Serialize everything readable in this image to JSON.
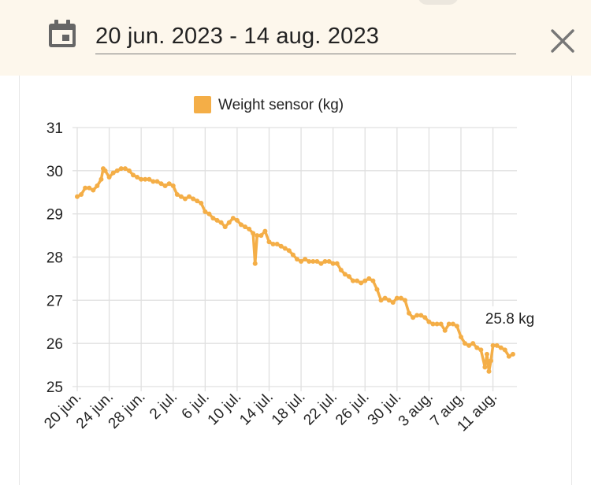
{
  "header": {
    "date_range": "20 jun. 2023 - 14 aug. 2023",
    "calendar_icon": "calendar-icon",
    "close_icon": "close-icon"
  },
  "colors": {
    "series": "#f4ae47",
    "header_bg": "#fdf7ec",
    "grid": "#e0e0e0"
  },
  "chart_data": {
    "type": "line",
    "legend": [
      {
        "name": "Weight sensor (kg)",
        "color": "#f4ae47",
        "position": "top-center"
      }
    ],
    "ylim": [
      25,
      31
    ],
    "yticks": [
      "25",
      "26",
      "27",
      "28",
      "29",
      "30",
      "31"
    ],
    "xlim": [
      "2023-06-20",
      "2023-08-14"
    ],
    "xticks": [
      {
        "label": "20 jun.",
        "date": "2023-06-20"
      },
      {
        "label": "24 jun.",
        "date": "2023-06-24"
      },
      {
        "label": "28 jun.",
        "date": "2023-06-28"
      },
      {
        "label": "2 jul.",
        "date": "2023-07-02"
      },
      {
        "label": "6 jul.",
        "date": "2023-07-06"
      },
      {
        "label": "10 jul.",
        "date": "2023-07-10"
      },
      {
        "label": "14 jul.",
        "date": "2023-07-14"
      },
      {
        "label": "18 jul.",
        "date": "2023-07-18"
      },
      {
        "label": "22 jul.",
        "date": "2023-07-22"
      },
      {
        "label": "26 jul.",
        "date": "2023-07-26"
      },
      {
        "label": "30 jul.",
        "date": "2023-07-30"
      },
      {
        "label": "3 aug.",
        "date": "2023-08-03"
      },
      {
        "label": "7 aug.",
        "date": "2023-08-07"
      },
      {
        "label": "11 aug.",
        "date": "2023-08-11"
      }
    ],
    "grid": true,
    "series": [
      {
        "name": "Weight sensor (kg)",
        "points": [
          [
            "2023-06-20",
            29.4
          ],
          [
            "2023-06-20T12:00",
            29.45
          ],
          [
            "2023-06-21",
            29.6
          ],
          [
            "2023-06-21T12:00",
            29.6
          ],
          [
            "2023-06-22",
            29.55
          ],
          [
            "2023-06-22T12:00",
            29.65
          ],
          [
            "2023-06-23",
            29.8
          ],
          [
            "2023-06-23T06:00",
            30.05
          ],
          [
            "2023-06-23T12:00",
            30.0
          ],
          [
            "2023-06-24",
            29.85
          ],
          [
            "2023-06-24T12:00",
            29.95
          ],
          [
            "2023-06-25",
            30.0
          ],
          [
            "2023-06-25T12:00",
            30.05
          ],
          [
            "2023-06-26",
            30.05
          ],
          [
            "2023-06-26T12:00",
            30.0
          ],
          [
            "2023-06-27",
            29.9
          ],
          [
            "2023-06-27T12:00",
            29.85
          ],
          [
            "2023-06-28",
            29.8
          ],
          [
            "2023-06-28T12:00",
            29.8
          ],
          [
            "2023-06-29",
            29.8
          ],
          [
            "2023-06-29T12:00",
            29.75
          ],
          [
            "2023-06-30",
            29.75
          ],
          [
            "2023-06-30T12:00",
            29.7
          ],
          [
            "2023-07-01",
            29.65
          ],
          [
            "2023-07-01T12:00",
            29.7
          ],
          [
            "2023-07-02",
            29.65
          ],
          [
            "2023-07-02T12:00",
            29.45
          ],
          [
            "2023-07-03",
            29.4
          ],
          [
            "2023-07-03T12:00",
            29.35
          ],
          [
            "2023-07-04",
            29.4
          ],
          [
            "2023-07-04T12:00",
            29.35
          ],
          [
            "2023-07-05",
            29.3
          ],
          [
            "2023-07-05T12:00",
            29.25
          ],
          [
            "2023-07-06",
            29.05
          ],
          [
            "2023-07-06T12:00",
            29.0
          ],
          [
            "2023-07-07",
            28.9
          ],
          [
            "2023-07-07T12:00",
            28.85
          ],
          [
            "2023-07-08",
            28.8
          ],
          [
            "2023-07-08T12:00",
            28.7
          ],
          [
            "2023-07-09",
            28.8
          ],
          [
            "2023-07-09T12:00",
            28.9
          ],
          [
            "2023-07-10",
            28.85
          ],
          [
            "2023-07-10T12:00",
            28.75
          ],
          [
            "2023-07-11",
            28.7
          ],
          [
            "2023-07-11T12:00",
            28.65
          ],
          [
            "2023-07-12",
            28.55
          ],
          [
            "2023-07-12T06:00",
            27.85
          ],
          [
            "2023-07-12T12:00",
            28.5
          ],
          [
            "2023-07-13",
            28.5
          ],
          [
            "2023-07-13T12:00",
            28.6
          ],
          [
            "2023-07-14",
            28.35
          ],
          [
            "2023-07-14T12:00",
            28.3
          ],
          [
            "2023-07-15",
            28.3
          ],
          [
            "2023-07-15T12:00",
            28.25
          ],
          [
            "2023-07-16",
            28.2
          ],
          [
            "2023-07-16T12:00",
            28.15
          ],
          [
            "2023-07-17",
            28.05
          ],
          [
            "2023-07-17T12:00",
            27.95
          ],
          [
            "2023-07-18",
            27.9
          ],
          [
            "2023-07-18T12:00",
            27.95
          ],
          [
            "2023-07-19",
            27.9
          ],
          [
            "2023-07-19T12:00",
            27.9
          ],
          [
            "2023-07-20",
            27.9
          ],
          [
            "2023-07-20T12:00",
            27.85
          ],
          [
            "2023-07-21",
            27.9
          ],
          [
            "2023-07-21T12:00",
            27.9
          ],
          [
            "2023-07-22",
            27.85
          ],
          [
            "2023-07-22T12:00",
            27.85
          ],
          [
            "2023-07-23",
            27.7
          ],
          [
            "2023-07-23T12:00",
            27.6
          ],
          [
            "2023-07-24",
            27.55
          ],
          [
            "2023-07-24T12:00",
            27.45
          ],
          [
            "2023-07-25",
            27.45
          ],
          [
            "2023-07-25T12:00",
            27.4
          ],
          [
            "2023-07-26",
            27.45
          ],
          [
            "2023-07-26T12:00",
            27.5
          ],
          [
            "2023-07-27",
            27.45
          ],
          [
            "2023-07-27T12:00",
            27.25
          ],
          [
            "2023-07-28",
            27.0
          ],
          [
            "2023-07-28T12:00",
            27.05
          ],
          [
            "2023-07-29",
            27.0
          ],
          [
            "2023-07-29T12:00",
            26.95
          ],
          [
            "2023-07-30",
            27.05
          ],
          [
            "2023-07-30T12:00",
            27.05
          ],
          [
            "2023-07-31",
            27.0
          ],
          [
            "2023-07-31T12:00",
            26.7
          ],
          [
            "2023-08-01",
            26.6
          ],
          [
            "2023-08-01T12:00",
            26.65
          ],
          [
            "2023-08-02",
            26.65
          ],
          [
            "2023-08-02T12:00",
            26.6
          ],
          [
            "2023-08-03",
            26.5
          ],
          [
            "2023-08-03T12:00",
            26.45
          ],
          [
            "2023-08-04",
            26.45
          ],
          [
            "2023-08-04T12:00",
            26.45
          ],
          [
            "2023-08-05",
            26.3
          ],
          [
            "2023-08-05T12:00",
            26.45
          ],
          [
            "2023-08-06",
            26.45
          ],
          [
            "2023-08-06T12:00",
            26.4
          ],
          [
            "2023-08-07",
            26.15
          ],
          [
            "2023-08-07T12:00",
            26.0
          ],
          [
            "2023-08-08",
            25.95
          ],
          [
            "2023-08-08T12:00",
            26.0
          ],
          [
            "2023-08-09",
            25.9
          ],
          [
            "2023-08-09T12:00",
            25.85
          ],
          [
            "2023-08-10",
            25.45
          ],
          [
            "2023-08-10T06:00",
            25.75
          ],
          [
            "2023-08-10T12:00",
            25.35
          ],
          [
            "2023-08-10T18:00",
            25.6
          ],
          [
            "2023-08-11",
            25.95
          ],
          [
            "2023-08-11T12:00",
            25.95
          ],
          [
            "2023-08-12",
            25.9
          ],
          [
            "2023-08-12T12:00",
            25.85
          ],
          [
            "2023-08-13",
            25.7
          ],
          [
            "2023-08-13T12:00",
            25.75
          ]
        ]
      }
    ],
    "annotations": [
      {
        "text": "25.8 kg",
        "x": "2023-08-13",
        "y": 25.8
      }
    ]
  }
}
